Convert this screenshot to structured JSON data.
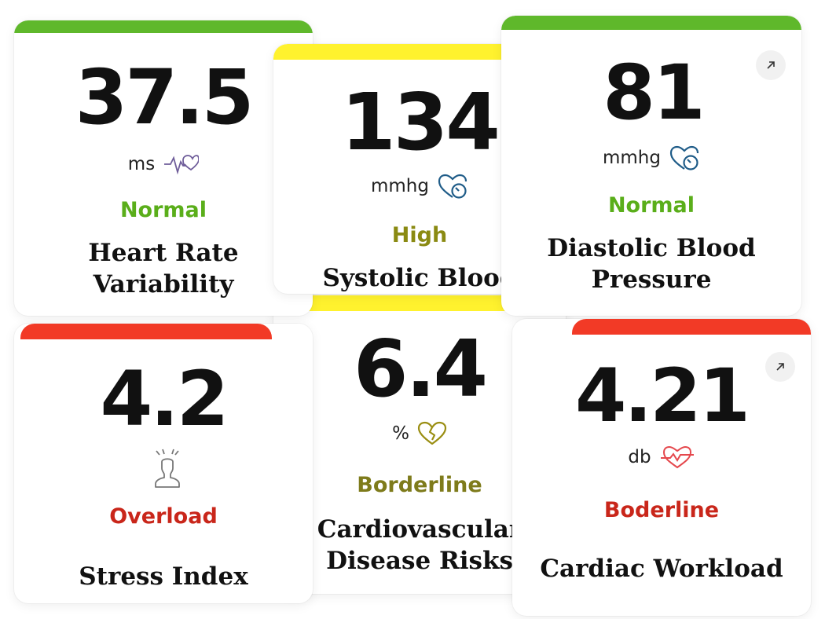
{
  "colors": {
    "normal": "#5aae1a",
    "high": "#8a8a12",
    "borderline": "#7e7b1b",
    "overload": "#c9261a",
    "bar_green": "#5fb82b",
    "bar_yellow": "#fff22e",
    "bar_red": "#f23a26"
  },
  "cards": [
    {
      "value": "37.5",
      "unit": "ms",
      "icon": "heart-pulse-icon",
      "status": "Normal",
      "title_line1": "Heart Rate",
      "title_line2": "Variability"
    },
    {
      "value": "134",
      "unit": "mmhg",
      "icon": "blood-pressure-icon",
      "status": "High",
      "title_line1": "Systolic Blood",
      "title_line2": ""
    },
    {
      "value": "81",
      "unit": "mmhg",
      "icon": "blood-pressure-icon",
      "status": "Normal",
      "title_line1": "Diastolic Blood",
      "title_line2": "Pressure"
    },
    {
      "value": "4.2",
      "unit": "",
      "icon": "stressed-person-icon",
      "status": "Overload",
      "title_line1": "Stress Index",
      "title_line2": ""
    },
    {
      "value": "6.4",
      "unit": "%",
      "icon": "broken-heart-icon",
      "status": "Borderline",
      "title_line1": "Cardiovascular",
      "title_line2": "Disease Risks"
    },
    {
      "value": "4.21",
      "unit": "db",
      "icon": "heart-scale-icon",
      "status": "Boderline",
      "title_line1": "Cardiac Workload",
      "title_line2": ""
    }
  ]
}
